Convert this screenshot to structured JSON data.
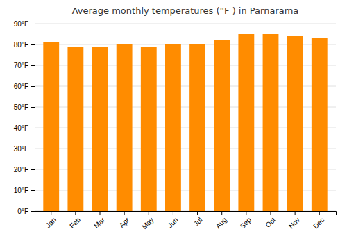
{
  "chart_data": {
    "type": "bar",
    "title": "Average monthly temperatures (°F ) in Parnarama",
    "categories": [
      "Jan",
      "Feb",
      "Mar",
      "Apr",
      "May",
      "Jun",
      "Jul",
      "Aug",
      "Sep",
      "Oct",
      "Nov",
      "Dec"
    ],
    "values": [
      81,
      79,
      79,
      80,
      79,
      80,
      80,
      82,
      85,
      85,
      84,
      83
    ],
    "color": "#FF8C00",
    "ylim": [
      0,
      90
    ],
    "yticks": [
      {
        "value": 0,
        "label": "0°F"
      },
      {
        "value": 10,
        "label": "10°F"
      },
      {
        "value": 20,
        "label": "20°F"
      },
      {
        "value": 30,
        "label": "30°F"
      },
      {
        "value": 40,
        "label": "40°F"
      },
      {
        "value": 50,
        "label": "50°F"
      },
      {
        "value": 60,
        "label": "60°F"
      },
      {
        "value": 70,
        "label": "70°F"
      },
      {
        "value": 80,
        "label": "80°F"
      },
      {
        "value": 90,
        "label": "90°F"
      }
    ],
    "grid": true
  }
}
